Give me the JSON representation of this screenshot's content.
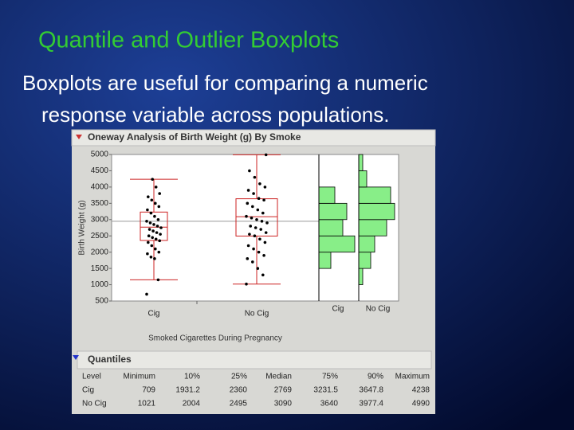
{
  "slide": {
    "title": "Quantile and Outlier Boxplots",
    "body": [
      "Boxplots are useful for comparing a numeric",
      "response variable across populations."
    ]
  },
  "report": {
    "title": "Oneway Analysis of Birth Weight (g) By Smoke",
    "quantiles": {
      "title": "Quantiles",
      "columns": [
        "Level",
        "Minimum",
        "10%",
        "25%",
        "Median",
        "75%",
        "90%",
        "Maximum"
      ],
      "rows": [
        [
          "Cig",
          709,
          1931.2,
          2360,
          2769,
          3231.5,
          3647.8,
          4238
        ],
        [
          "No Cig",
          1021,
          2004,
          2495,
          3090,
          3640,
          3977.4,
          4990
        ]
      ]
    }
  },
  "chart_data": {
    "type": "box",
    "y_label": "Birth Weight (g)",
    "x_label": "Smoked Cigarettes During Pregnancy",
    "categories": [
      "Cig",
      "No Cig"
    ],
    "ylim": [
      500,
      5000
    ],
    "yticks": [
      500,
      1000,
      1500,
      2000,
      2500,
      3000,
      3500,
      4000,
      4500,
      5000
    ],
    "grand_mean": 2950,
    "whisker_low": [
      1150,
      1021
    ],
    "whisker_high": [
      4238,
      4990
    ],
    "box_color": "#cc2222",
    "point_color": "#000000",
    "hist_color": "#88ee88",
    "points": [
      [
        709,
        1150,
        1800,
        1850,
        1950,
        2000,
        2100,
        2200,
        2300,
        2350,
        2400,
        2450,
        2500,
        2550,
        2600,
        2650,
        2700,
        2750,
        2800,
        2850,
        2900,
        2950,
        3000,
        3100,
        3200,
        3300,
        3400,
        3500,
        3600,
        3700,
        3800,
        4000,
        4238
      ],
      [
        1021,
        1300,
        1500,
        1700,
        1800,
        1900,
        2000,
        2100,
        2200,
        2300,
        2400,
        2500,
        2550,
        2600,
        2700,
        2750,
        2800,
        2900,
        2950,
        3000,
        3050,
        3100,
        3200,
        3300,
        3400,
        3500,
        3600,
        3650,
        3800,
        3900,
        4000,
        4100,
        4300,
        4500,
        4990
      ]
    ],
    "histograms": [
      {
        "bins": [
          1500,
          2000,
          2500,
          3000,
          3500,
          4000
        ],
        "counts": [
          3,
          9,
          6,
          7,
          4
        ]
      },
      {
        "bins": [
          1000,
          1500,
          2000,
          2500,
          3000,
          3500,
          4000,
          4500,
          5000
        ],
        "counts": [
          1,
          3,
          4,
          7,
          9,
          8,
          2,
          1
        ]
      }
    ]
  }
}
